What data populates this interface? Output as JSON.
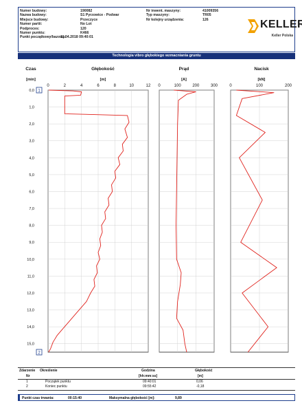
{
  "header": {
    "labels": [
      "Numer budowy:",
      "Nazwa budowy:",
      "Miejsce budowy:",
      "Numer partii:",
      "Podproces:",
      "Numer punktu:",
      "Punkt początkowy/bazowy:"
    ],
    "values": [
      "190082",
      "S1 Pyrzowice - Podwar",
      "Przeczyce",
      "No Lot",
      "120",
      "K466",
      "11.04.2018 09:40:01"
    ],
    "labels2": [
      "Nr inwent. maszyny:",
      "Typ maszyny:",
      "Nr kolejny urządzenia:"
    ],
    "values2": [
      "41009356",
      "TR05",
      "126"
    ],
    "logo_text": "KELLER",
    "logo_sub": "Keller Polska",
    "bar_title": "Technologia vibro głębokiego wzmacniania gruntu",
    "logo_colors": [
      "#f2a100",
      "#1b1b1b"
    ]
  },
  "columns": {
    "time": {
      "label": "Czas",
      "unit": "[min]"
    },
    "depth": {
      "label": "Głębokość",
      "unit": "[m]"
    },
    "current": {
      "label": "Prąd",
      "unit": "[A]"
    },
    "pressure": {
      "label": "Nacisk",
      "unit": "[kN]"
    }
  },
  "markers": {
    "start": "1",
    "end": "2"
  },
  "chart_data": [
    {
      "type": "line",
      "title": "Głębokość",
      "xlabel": "[m]",
      "ylabel": "[min]",
      "xlim": [
        0,
        12
      ],
      "ylim": [
        0,
        15.5
      ],
      "x_ticks": [
        "0",
        "2",
        "4",
        "6",
        "8",
        "10",
        "12"
      ],
      "y_ticks": [
        "0,0",
        "1,0",
        "2,0",
        "3,0",
        "4,0",
        "5,0",
        "6,0",
        "7,0",
        "8,0",
        "9,0",
        "10,0",
        "11,0",
        "12,0",
        "13,0",
        "14,0",
        "15,0"
      ],
      "series": [
        {
          "points": [
            [
              0.1,
              0
            ],
            [
              3.0,
              0.05
            ],
            [
              4.0,
              0.1
            ],
            [
              3.9,
              0.3
            ],
            [
              2.0,
              0.35
            ],
            [
              2.0,
              1.4
            ],
            [
              5.5,
              1.45
            ],
            [
              9.5,
              1.5
            ],
            [
              9.7,
              1.9
            ],
            [
              9.2,
              2.3
            ],
            [
              9.5,
              2.8
            ],
            [
              8.9,
              3.2
            ],
            [
              9.0,
              3.6
            ],
            [
              8.4,
              4.0
            ],
            [
              8.6,
              4.4
            ],
            [
              8.0,
              4.8
            ],
            [
              8.1,
              5.2
            ],
            [
              7.6,
              5.6
            ],
            [
              7.7,
              6.0
            ],
            [
              7.2,
              6.4
            ],
            [
              7.3,
              6.8
            ],
            [
              6.8,
              7.2
            ],
            [
              6.9,
              7.6
            ],
            [
              6.4,
              8.0
            ],
            [
              6.5,
              8.4
            ],
            [
              6.2,
              8.8
            ],
            [
              6.3,
              9.2
            ],
            [
              6.0,
              9.6
            ],
            [
              6.2,
              10.0
            ],
            [
              5.8,
              10.4
            ],
            [
              5.9,
              10.8
            ],
            [
              5.5,
              11.2
            ],
            [
              5.6,
              11.6
            ],
            [
              5.1,
              12.0
            ],
            [
              4.6,
              12.5
            ],
            [
              3.9,
              12.9
            ],
            [
              3.2,
              13.3
            ],
            [
              2.5,
              13.7
            ],
            [
              1.8,
              14.1
            ],
            [
              1.1,
              14.5
            ],
            [
              0.6,
              14.9
            ],
            [
              0.3,
              15.3
            ],
            [
              0.06,
              15.5
            ]
          ]
        }
      ]
    },
    {
      "type": "line",
      "title": "Prąd",
      "xlabel": "[A]",
      "xlim": [
        0,
        300
      ],
      "ylim": [
        0,
        15.5
      ],
      "x_ticks": [
        "0",
        "100",
        "200",
        "300"
      ],
      "series": [
        {
          "points": [
            [
              80,
              0
            ],
            [
              200,
              0.1
            ],
            [
              150,
              0.25
            ],
            [
              105,
              0.6
            ],
            [
              100,
              2.0
            ],
            [
              96,
              5.0
            ],
            [
              92,
              8.0
            ],
            [
              95,
              10.0
            ],
            [
              120,
              10.8
            ],
            [
              115,
              11.5
            ],
            [
              100,
              12.5
            ],
            [
              95,
              13.5
            ],
            [
              130,
              14.2
            ],
            [
              140,
              15.0
            ],
            [
              150,
              15.5
            ]
          ]
        }
      ]
    },
    {
      "type": "line",
      "title": "Nacisk",
      "xlabel": "[kN]",
      "xlim": [
        0,
        200
      ],
      "ylim": [
        0,
        15.5
      ],
      "x_ticks": [
        "0",
        "100",
        "200"
      ],
      "series": [
        {
          "points": [
            [
              20,
              0
            ],
            [
              150,
              0.15
            ],
            [
              40,
              0.5
            ],
            [
              20,
              1.5
            ],
            [
              120,
              2.5
            ],
            [
              30,
              4.0
            ],
            [
              110,
              6.5
            ],
            [
              35,
              9.0
            ],
            [
              160,
              10.5
            ],
            [
              40,
              12.0
            ],
            [
              130,
              14.0
            ],
            [
              60,
              15.5
            ]
          ]
        }
      ]
    }
  ],
  "footer": {
    "headers": [
      "Zdarzenie",
      "Określenie",
      "Godzina",
      "Głębokość"
    ],
    "subheaders": [
      "Nr",
      "[hh:mm:ss]",
      "[m]"
    ],
    "rows": [
      {
        "nr": "1",
        "desc": "Początek punktu",
        "time": "09:40:01",
        "depth": "0,06"
      },
      {
        "nr": "2",
        "desc": "Koniec punktu",
        "time": "09:55:42",
        "depth": "-0,18"
      }
    ],
    "summary_label": "Punkt czas trwania:",
    "summary_value": "00:15:40",
    "max_label": "Maksymalna głębokość [m]:",
    "max_value": "9,89"
  }
}
